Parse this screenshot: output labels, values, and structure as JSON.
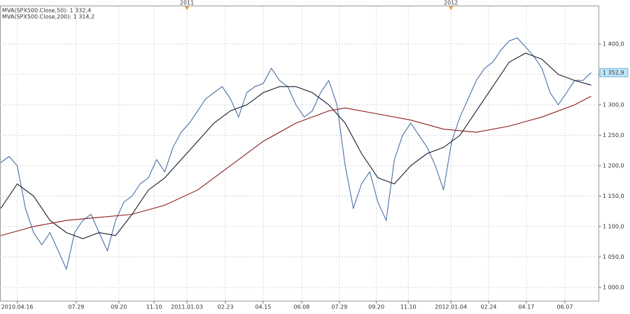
{
  "chart_data": {
    "type": "line",
    "series": [
      {
        "color": "#4a6fa5",
        "x": [
          -20,
          -10,
          0,
          10,
          20,
          30,
          40,
          50,
          60,
          70,
          80,
          90,
          100,
          110,
          120,
          130,
          140,
          150,
          160,
          170,
          180,
          190,
          200,
          210,
          220,
          230,
          240,
          250,
          260,
          270,
          280,
          290,
          300,
          310,
          320,
          330,
          340,
          350,
          360,
          370,
          380,
          390,
          400,
          410,
          420,
          430,
          440,
          450,
          460,
          470,
          480,
          490,
          500,
          510,
          520,
          530,
          540,
          550,
          560,
          570,
          580,
          590,
          600,
          610,
          620,
          630,
          640,
          650,
          660,
          670,
          680,
          690,
          700
        ],
        "values": [
          1205,
          1215,
          1200,
          1130,
          1090,
          1070,
          1090,
          1060,
          1030,
          1090,
          1110,
          1120,
          1090,
          1060,
          1110,
          1140,
          1150,
          1170,
          1180,
          1210,
          1190,
          1230,
          1255,
          1270,
          1290,
          1310,
          1320,
          1330,
          1310,
          1280,
          1320,
          1330,
          1335,
          1360,
          1340,
          1330,
          1300,
          1280,
          1290,
          1320,
          1340,
          1300,
          1200,
          1130,
          1170,
          1190,
          1140,
          1110,
          1210,
          1250,
          1270,
          1250,
          1230,
          1200,
          1160,
          1240,
          1280,
          1310,
          1340,
          1360,
          1370,
          1390,
          1405,
          1410,
          1395,
          1380,
          1360,
          1320,
          1300,
          1320,
          1340,
          1340,
          1353
        ]
      },
      {
        "name": "MVA(SPX500.Close,50): 1 332,4",
        "color": "#1a1a2e",
        "x": [
          -20,
          0,
          20,
          40,
          60,
          80,
          100,
          120,
          140,
          160,
          180,
          200,
          220,
          240,
          260,
          280,
          300,
          320,
          340,
          360,
          380,
          400,
          420,
          440,
          460,
          480,
          500,
          520,
          540,
          560,
          580,
          600,
          620,
          640,
          660,
          680,
          700
        ],
        "values": [
          1130,
          1170,
          1150,
          1110,
          1090,
          1080,
          1090,
          1085,
          1120,
          1160,
          1180,
          1210,
          1240,
          1270,
          1290,
          1300,
          1320,
          1330,
          1330,
          1320,
          1300,
          1270,
          1220,
          1180,
          1170,
          1200,
          1220,
          1230,
          1250,
          1290,
          1330,
          1370,
          1385,
          1375,
          1350,
          1340,
          1332.4
        ]
      },
      {
        "name": "MVA(SPX500.Close,200): 1 314,2",
        "color": "#8b1a1a",
        "x": [
          -20,
          20,
          60,
          100,
          140,
          180,
          220,
          260,
          300,
          340,
          380,
          400,
          440,
          480,
          520,
          560,
          600,
          640,
          680,
          700
        ],
        "values": [
          1085,
          1100,
          1110,
          1115,
          1120,
          1135,
          1160,
          1200,
          1240,
          1270,
          1290,
          1295,
          1285,
          1275,
          1260,
          1255,
          1265,
          1280,
          1300,
          1314.2
        ]
      }
    ],
    "xlim": [
      -21,
      709
    ],
    "xticks": [
      {
        "value": 0,
        "label": "2010.04.16"
      },
      {
        "value": 72,
        "label": "07.29"
      },
      {
        "value": 124,
        "label": "09.20"
      },
      {
        "value": 167,
        "label": "11.10"
      },
      {
        "value": 207,
        "label": "2011.01.03"
      },
      {
        "value": 254,
        "label": "02.23"
      },
      {
        "value": 300,
        "label": "04.15"
      },
      {
        "value": 347,
        "label": "06.08"
      },
      {
        "value": 393,
        "label": "07.29"
      },
      {
        "value": 438,
        "label": "09.20"
      },
      {
        "value": 477,
        "label": "11.10"
      },
      {
        "value": 529,
        "label": "2012.01.04"
      },
      {
        "value": 575,
        "label": "02.24"
      },
      {
        "value": 621,
        "label": "04.17"
      },
      {
        "value": 668,
        "label": "06.07"
      }
    ],
    "year_markers": [
      {
        "value": 207,
        "label": "2011"
      },
      {
        "value": 529,
        "label": "2012"
      }
    ],
    "ylim": [
      978,
      1462
    ],
    "yticks": [
      {
        "value": 1000,
        "label": "1 000,0"
      },
      {
        "value": 1050,
        "label": "1 050,0"
      },
      {
        "value": 1100,
        "label": "1 100,0"
      },
      {
        "value": 1150,
        "label": "1 150,0"
      },
      {
        "value": 1200,
        "label": "1 200,0"
      },
      {
        "value": 1250,
        "label": "1 250,0"
      },
      {
        "value": 1300,
        "label": "1 300,0"
      },
      {
        "value": 1350,
        "label": "1 350,0"
      },
      {
        "value": 1400,
        "label": "1 400,0"
      }
    ],
    "last_label": {
      "value": 1352.9,
      "label": "1 352,9"
    },
    "grid": true
  }
}
